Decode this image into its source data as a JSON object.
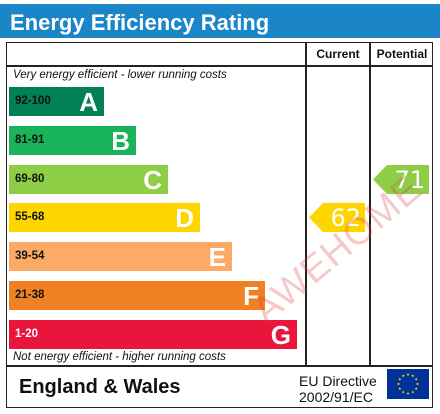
{
  "title": "Energy Efficiency Rating",
  "columns": {
    "current": "Current",
    "potential": "Potential"
  },
  "notes": {
    "top": "Very energy efficient - lower running costs",
    "bottom": "Not energy efficient - higher running costs"
  },
  "bands": [
    {
      "range": "92-100",
      "letter": "A",
      "color": "#008054",
      "range_color": "#111111"
    },
    {
      "range": "81-91",
      "letter": "B",
      "color": "#19b459",
      "range_color": "#111111"
    },
    {
      "range": "69-80",
      "letter": "C",
      "color": "#8dce46",
      "range_color": "#111111"
    },
    {
      "range": "55-68",
      "letter": "D",
      "color": "#ffd500",
      "range_color": "#111111"
    },
    {
      "range": "39-54",
      "letter": "E",
      "color": "#fcaa65",
      "range_color": "#111111"
    },
    {
      "range": "21-38",
      "letter": "F",
      "color": "#ef8023",
      "range_color": "#111111"
    },
    {
      "range": "1-20",
      "letter": "G",
      "color": "#e9153b",
      "range_color": "#ffffff"
    }
  ],
  "ratings": {
    "current": {
      "value": "62",
      "band": "D",
      "color": "#ffd500"
    },
    "potential": {
      "value": "71",
      "band": "C",
      "color": "#8dce46"
    }
  },
  "footer": {
    "region": "England & Wales",
    "directive_line1": "EU Directive",
    "directive_line2": "2002/91/EC",
    "flag_icon": "eu-flag-icon"
  },
  "watermark": "AWEHOME"
}
